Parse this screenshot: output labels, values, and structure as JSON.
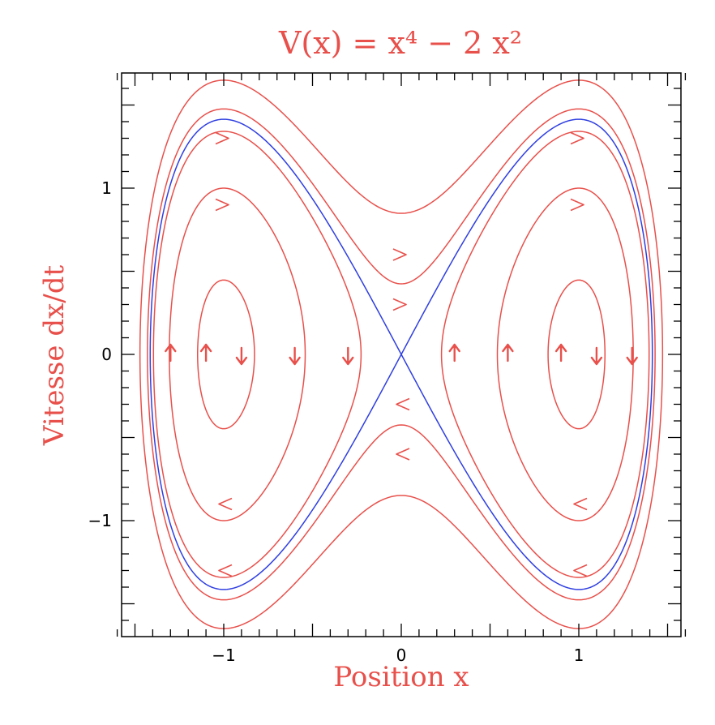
{
  "chart_data": {
    "type": "line",
    "title": "V(x) = x⁴ − 2 x²",
    "xlabel": "Position x",
    "ylabel": "Vitesse dx/dt",
    "xlim": [
      -1.6,
      1.6
    ],
    "ylim": [
      -1.6,
      1.65
    ],
    "xticks": [
      -1,
      0,
      1
    ],
    "xtick_labels": [
      "−1",
      "0",
      "1"
    ],
    "yticks": [
      -1,
      0,
      1
    ],
    "ytick_labels": [
      "−1",
      "0",
      "1"
    ],
    "grid": false,
    "legend": "none",
    "colors": {
      "orbit": "#e8504b",
      "separatrix": "#2f3fe0",
      "axes": "#000000"
    },
    "potential": "x^4 - 2x^2",
    "orbits": [
      {
        "energy": -0.9,
        "kind": "inner"
      },
      {
        "energy": -0.5,
        "kind": "inner"
      },
      {
        "energy": -0.1,
        "kind": "inner"
      },
      {
        "energy": 0.0,
        "kind": "separatrix"
      },
      {
        "energy": 0.09,
        "kind": "outer"
      },
      {
        "energy": 0.36,
        "kind": "outer"
      }
    ],
    "flow_arrows_on_x_axis": [
      -1.3,
      -1.1,
      -0.9,
      -0.6,
      -0.3,
      0.3,
      0.6,
      0.9,
      1.1,
      1.3
    ],
    "flow_arrows_on_orbits": [
      {
        "x": -1.0,
        "y": 1.3
      },
      {
        "x": -1.0,
        "y": 0.9
      },
      {
        "x": 1.0,
        "y": 1.3
      },
      {
        "x": 1.0,
        "y": 0.9
      },
      {
        "x": -1.0,
        "y": -1.3
      },
      {
        "x": -1.0,
        "y": -0.9
      },
      {
        "x": 1.0,
        "y": -1.3
      },
      {
        "x": 1.0,
        "y": -0.9
      },
      {
        "x": 0.0,
        "y": 0.6
      },
      {
        "x": 0.0,
        "y": 0.3
      },
      {
        "x": 0.0,
        "y": -0.3
      },
      {
        "x": 0.0,
        "y": -0.6
      }
    ]
  }
}
